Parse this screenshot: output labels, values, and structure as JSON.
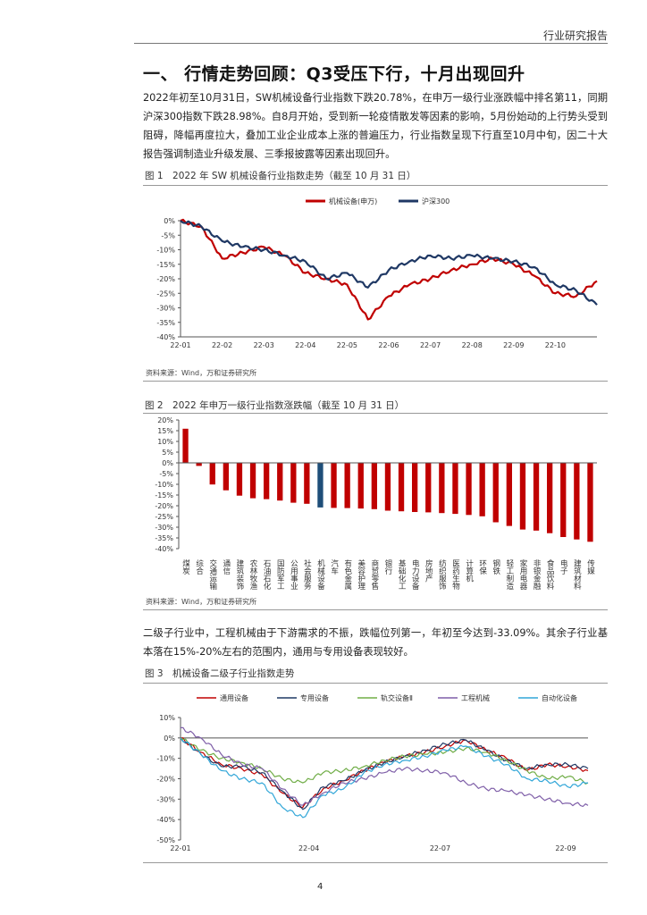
{
  "header": {
    "report_type": "行业研究报告"
  },
  "section_title": "一、 行情走势回顾：Q3受压下行，十月出现回升",
  "paragraph1": "2022年初至10月31日，SW机械设备行业指数下跌20.78%，在申万一级行业涨跌幅中排名第11，同期沪深300指数下跌28.98%。自8月开始，受到新一轮疫情散发等因素的影响，5月份始动的上行势头受到阻碍，降幅再度拉大，叠加工业企业成本上涨的普遍压力，行业指数呈现下行直至10月中旬，因二十大报告强调制造业升级发展、三季报披露等因素出现回升。",
  "figure1": {
    "caption": "图 1　2022 年 SW 机械设备行业指数走势（截至 10 月 31 日）",
    "source": "资料来源：Wind，万和证券研究所"
  },
  "figure2": {
    "caption": "图 2　2022 年申万一级行业指数涨跌幅（截至 10 月 31 日）",
    "source": "资料来源：Wind，万和证券研究所"
  },
  "paragraph2": "二级子行业中，工程机械由于下游需求的不振，跌幅位列第一，年初至今达到-33.09%。其余子行业基本落在15%-20%左右的范围内，通用与专用设备表现较好。",
  "figure3": {
    "caption": "图 3　机械设备二级子行业指数走势"
  },
  "page_number": "4",
  "chart_data": [
    {
      "type": "line",
      "title": "",
      "legend": [
        "机械设备(申万)",
        "沪深300"
      ],
      "colors": [
        "#c00000",
        "#1f3864"
      ],
      "y_ticks": [
        "0%",
        "-5%",
        "-10%",
        "-15%",
        "-20%",
        "-25%",
        "-30%",
        "-35%",
        "-40%"
      ],
      "ylim": [
        -40,
        0
      ],
      "x_ticks": [
        "22-01",
        "22-02",
        "22-03",
        "22-04",
        "22-05",
        "22-06",
        "22-07",
        "22-08",
        "22-09",
        "22-10"
      ],
      "x": [
        0,
        0.5,
        1,
        1.5,
        2,
        2.5,
        3,
        3.5,
        4,
        4.5,
        5,
        5.5,
        6,
        6.5,
        7,
        7.5,
        8,
        8.5,
        9,
        9.5,
        10
      ],
      "series": [
        {
          "name": "机械设备(申万)",
          "values": [
            0,
            -2,
            -13,
            -11,
            -9,
            -12,
            -18,
            -20,
            -22,
            -34,
            -26,
            -22,
            -20,
            -17,
            -15,
            -13,
            -15,
            -19,
            -25,
            -26,
            -20.78
          ]
        },
        {
          "name": "沪深300",
          "values": [
            0,
            -2,
            -7,
            -9,
            -10,
            -12,
            -14,
            -20,
            -18,
            -23,
            -17,
            -14,
            -12,
            -13,
            -12,
            -13,
            -14,
            -16,
            -22,
            -24,
            -28.98
          ]
        }
      ]
    },
    {
      "type": "bar",
      "title": "",
      "y_ticks": [
        "20%",
        "15%",
        "10%",
        "5%",
        "0%",
        "-5%",
        "-10%",
        "-15%",
        "-20%",
        "-25%",
        "-30%",
        "-35%",
        "-40%"
      ],
      "ylim": [
        -40,
        20
      ],
      "highlight": "机械设备",
      "colors": {
        "default": "#c00000",
        "highlight": "#1f4e79"
      },
      "categories": [
        "煤炭",
        "综合",
        "交通运输",
        "通信",
        "建筑装饰",
        "农林牧渔",
        "石油石化",
        "国防军工",
        "公用事业",
        "社会服务",
        "机械设备",
        "汽车",
        "有色金属",
        "美容护理",
        "商贸零售",
        "银行",
        "基础化工",
        "电力设备",
        "房地产",
        "纺织服饰",
        "医药生物",
        "计算机",
        "环保",
        "钢铁",
        "轻工制造",
        "家用电器",
        "非银金融",
        "食品饮料",
        "电子",
        "建筑材料",
        "传媒"
      ],
      "values": [
        15.9,
        -1.4,
        -10.1,
        -12.8,
        -15.3,
        -16.5,
        -16.9,
        -17.6,
        -18.6,
        -19.1,
        -20.78,
        -21.0,
        -21.1,
        -21.3,
        -21.6,
        -22.3,
        -22.6,
        -22.9,
        -23.1,
        -23.4,
        -23.8,
        -24.3,
        -24.9,
        -27.7,
        -29.4,
        -31.1,
        -31.6,
        -32.8,
        -34.6,
        -35.7,
        -36.8
      ]
    },
    {
      "type": "line",
      "title": "",
      "legend": [
        "通用设备",
        "专用设备",
        "轨交设备Ⅱ",
        "工程机械",
        "自动化设备"
      ],
      "colors": [
        "#c00000",
        "#1f3864",
        "#70ad47",
        "#7f5fa8",
        "#31a6d8"
      ],
      "y_ticks": [
        "10%",
        "0%",
        "-10%",
        "-20%",
        "-30%",
        "-40%",
        "-50%"
      ],
      "ylim": [
        -50,
        10
      ],
      "x_ticks": [
        "22-01",
        "22-04",
        "22-07",
        "22-09"
      ],
      "x": [
        0,
        0.5,
        1,
        1.5,
        2,
        2.5,
        3,
        3.5,
        4,
        4.5,
        5,
        5.5,
        6,
        6.5,
        7,
        7.5,
        8,
        8.5,
        9,
        9.5,
        10
      ],
      "series": [
        {
          "name": "通用设备",
          "values": [
            0,
            -7,
            -13,
            -15,
            -18,
            -27,
            -34,
            -25,
            -21,
            -16,
            -12,
            -9,
            -7,
            -4,
            -1,
            -6,
            -10,
            -16,
            -13,
            -14,
            -16
          ]
        },
        {
          "name": "专用设备",
          "values": [
            0,
            -8,
            -14,
            -14,
            -17,
            -26,
            -35,
            -24,
            -21,
            -16,
            -12,
            -9,
            -6,
            -3,
            -1,
            -6,
            -11,
            -15,
            -13,
            -13,
            -15
          ]
        },
        {
          "name": "轨交设备Ⅱ",
          "values": [
            0,
            -6,
            -10,
            -12,
            -15,
            -20,
            -22,
            -17,
            -16,
            -14,
            -11,
            -9,
            -8,
            -7,
            -5,
            -7,
            -11,
            -16,
            -20,
            -19,
            -22
          ]
        },
        {
          "name": "工程机械",
          "values": [
            5,
            0,
            -8,
            -13,
            -15,
            -25,
            -33,
            -27,
            -22,
            -20,
            -17,
            -15,
            -16,
            -17,
            -22,
            -25,
            -26,
            -28,
            -30,
            -32,
            -33.09
          ]
        },
        {
          "name": "自动化设备",
          "values": [
            0,
            -8,
            -16,
            -20,
            -22,
            -34,
            -39,
            -28,
            -25,
            -17,
            -13,
            -11,
            -9,
            -6,
            -4,
            -9,
            -13,
            -20,
            -21,
            -24,
            -22
          ]
        }
      ]
    }
  ]
}
